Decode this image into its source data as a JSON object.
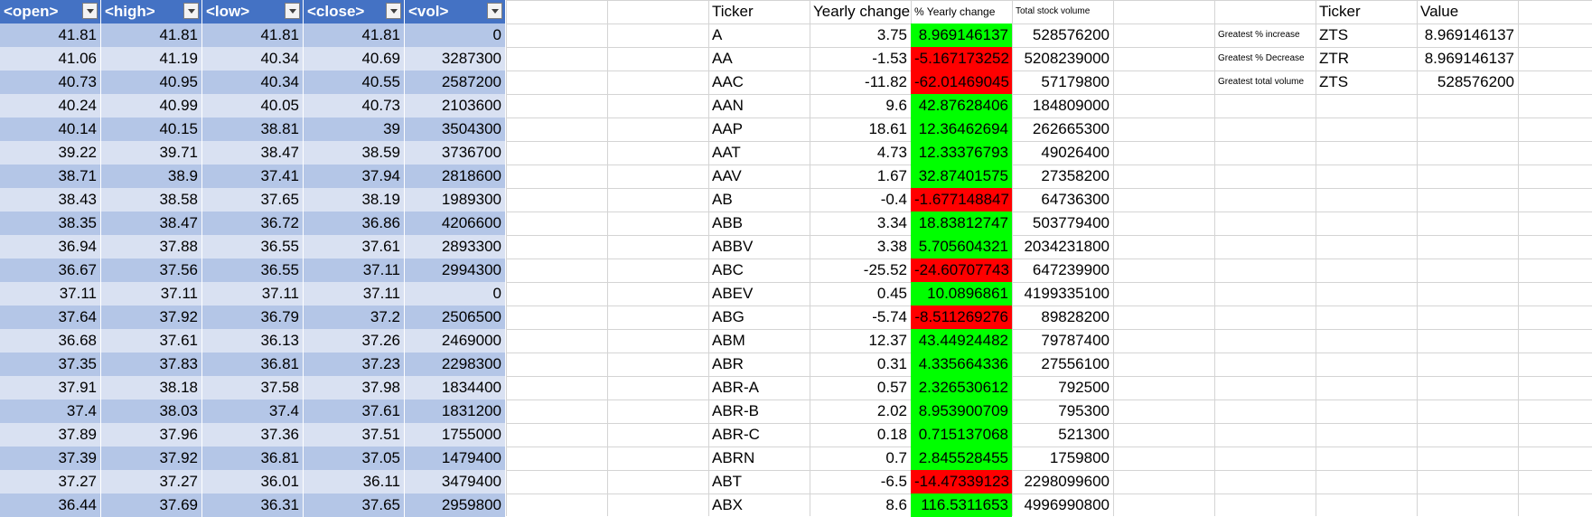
{
  "colors": {
    "header_bg": "#4472c4",
    "band_dark": "#b4c6e7",
    "band_light": "#d9e1f2",
    "positive_fill": "#00ff00",
    "negative_fill": "#ff0000"
  },
  "icons": {
    "filter": "filter-dropdown-icon"
  },
  "raw_table": {
    "headers": [
      "<open>",
      "<high>",
      "<low>",
      "<close>",
      "<vol>"
    ],
    "rows": [
      [
        "41.81",
        "41.81",
        "41.81",
        "41.81",
        "0"
      ],
      [
        "41.06",
        "41.19",
        "40.34",
        "40.69",
        "3287300"
      ],
      [
        "40.73",
        "40.95",
        "40.34",
        "40.55",
        "2587200"
      ],
      [
        "40.24",
        "40.99",
        "40.05",
        "40.73",
        "2103600"
      ],
      [
        "40.14",
        "40.15",
        "38.81",
        "39",
        "3504300"
      ],
      [
        "39.22",
        "39.71",
        "38.47",
        "38.59",
        "3736700"
      ],
      [
        "38.71",
        "38.9",
        "37.41",
        "37.94",
        "2818600"
      ],
      [
        "38.43",
        "38.58",
        "37.65",
        "38.19",
        "1989300"
      ],
      [
        "38.35",
        "38.47",
        "36.72",
        "36.86",
        "4206600"
      ],
      [
        "36.94",
        "37.88",
        "36.55",
        "37.61",
        "2893300"
      ],
      [
        "36.67",
        "37.56",
        "36.55",
        "37.11",
        "2994300"
      ],
      [
        "37.11",
        "37.11",
        "37.11",
        "37.11",
        "0"
      ],
      [
        "37.64",
        "37.92",
        "36.79",
        "37.2",
        "2506500"
      ],
      [
        "36.68",
        "37.61",
        "36.13",
        "37.26",
        "2469000"
      ],
      [
        "37.35",
        "37.83",
        "36.81",
        "37.23",
        "2298300"
      ],
      [
        "37.91",
        "38.18",
        "37.58",
        "37.98",
        "1834400"
      ],
      [
        "37.4",
        "38.03",
        "37.4",
        "37.61",
        "1831200"
      ],
      [
        "37.89",
        "37.96",
        "37.36",
        "37.51",
        "1755000"
      ],
      [
        "37.39",
        "37.92",
        "36.81",
        "37.05",
        "1479400"
      ],
      [
        "37.27",
        "37.27",
        "36.01",
        "36.11",
        "3479400"
      ],
      [
        "36.44",
        "37.69",
        "36.31",
        "37.65",
        "2959800"
      ]
    ]
  },
  "summary_table": {
    "headers": {
      "ticker": "Ticker",
      "yearly_change": "Yearly change",
      "pct_change": "% Yearly change",
      "volume": "Total stock volume"
    },
    "rows": [
      {
        "ticker": "A",
        "yearly_change": "3.75",
        "pct_change": "8.969146137",
        "volume": "528576200",
        "dir": "pos"
      },
      {
        "ticker": "AA",
        "yearly_change": "-1.53",
        "pct_change": "-5.167173252",
        "volume": "5208239000",
        "dir": "neg"
      },
      {
        "ticker": "AAC",
        "yearly_change": "-11.82",
        "pct_change": "-62.01469045",
        "volume": "57179800",
        "dir": "neg"
      },
      {
        "ticker": "AAN",
        "yearly_change": "9.6",
        "pct_change": "42.87628406",
        "volume": "184809000",
        "dir": "pos"
      },
      {
        "ticker": "AAP",
        "yearly_change": "18.61",
        "pct_change": "12.36462694",
        "volume": "262665300",
        "dir": "pos"
      },
      {
        "ticker": "AAT",
        "yearly_change": "4.73",
        "pct_change": "12.33376793",
        "volume": "49026400",
        "dir": "pos"
      },
      {
        "ticker": "AAV",
        "yearly_change": "1.67",
        "pct_change": "32.87401575",
        "volume": "27358200",
        "dir": "pos"
      },
      {
        "ticker": "AB",
        "yearly_change": "-0.4",
        "pct_change": "-1.677148847",
        "volume": "64736300",
        "dir": "neg"
      },
      {
        "ticker": "ABB",
        "yearly_change": "3.34",
        "pct_change": "18.83812747",
        "volume": "503779400",
        "dir": "pos"
      },
      {
        "ticker": "ABBV",
        "yearly_change": "3.38",
        "pct_change": "5.705604321",
        "volume": "2034231800",
        "dir": "pos"
      },
      {
        "ticker": "ABC",
        "yearly_change": "-25.52",
        "pct_change": "-24.60707743",
        "volume": "647239900",
        "dir": "neg"
      },
      {
        "ticker": "ABEV",
        "yearly_change": "0.45",
        "pct_change": "10.0896861",
        "volume": "4199335100",
        "dir": "pos"
      },
      {
        "ticker": "ABG",
        "yearly_change": "-5.74",
        "pct_change": "-8.511269276",
        "volume": "89828200",
        "dir": "neg"
      },
      {
        "ticker": "ABM",
        "yearly_change": "12.37",
        "pct_change": "43.44924482",
        "volume": "79787400",
        "dir": "pos"
      },
      {
        "ticker": "ABR",
        "yearly_change": "0.31",
        "pct_change": "4.335664336",
        "volume": "27556100",
        "dir": "pos"
      },
      {
        "ticker": "ABR-A",
        "yearly_change": "0.57",
        "pct_change": "2.326530612",
        "volume": "792500",
        "dir": "pos"
      },
      {
        "ticker": "ABR-B",
        "yearly_change": "2.02",
        "pct_change": "8.953900709",
        "volume": "795300",
        "dir": "pos"
      },
      {
        "ticker": "ABR-C",
        "yearly_change": "0.18",
        "pct_change": "0.715137068",
        "volume": "521300",
        "dir": "pos"
      },
      {
        "ticker": "ABRN",
        "yearly_change": "0.7",
        "pct_change": "2.845528455",
        "volume": "1759800",
        "dir": "pos"
      },
      {
        "ticker": "ABT",
        "yearly_change": "-6.5",
        "pct_change": "-14.47339123",
        "volume": "2298099600",
        "dir": "neg"
      },
      {
        "ticker": "ABX",
        "yearly_change": "8.6",
        "pct_change": "116.5311653",
        "volume": "4996990800",
        "dir": "pos"
      }
    ]
  },
  "greatest": {
    "headers": {
      "ticker": "Ticker",
      "value": "Value"
    },
    "rows": [
      {
        "label": "Greatest % increase",
        "ticker": "ZTS",
        "value": "8.969146137"
      },
      {
        "label": "Greatest % Decrease",
        "ticker": "ZTR",
        "value": "8.969146137"
      },
      {
        "label": "Greatest total volume",
        "ticker": "ZTS",
        "value": "528576200"
      }
    ]
  }
}
